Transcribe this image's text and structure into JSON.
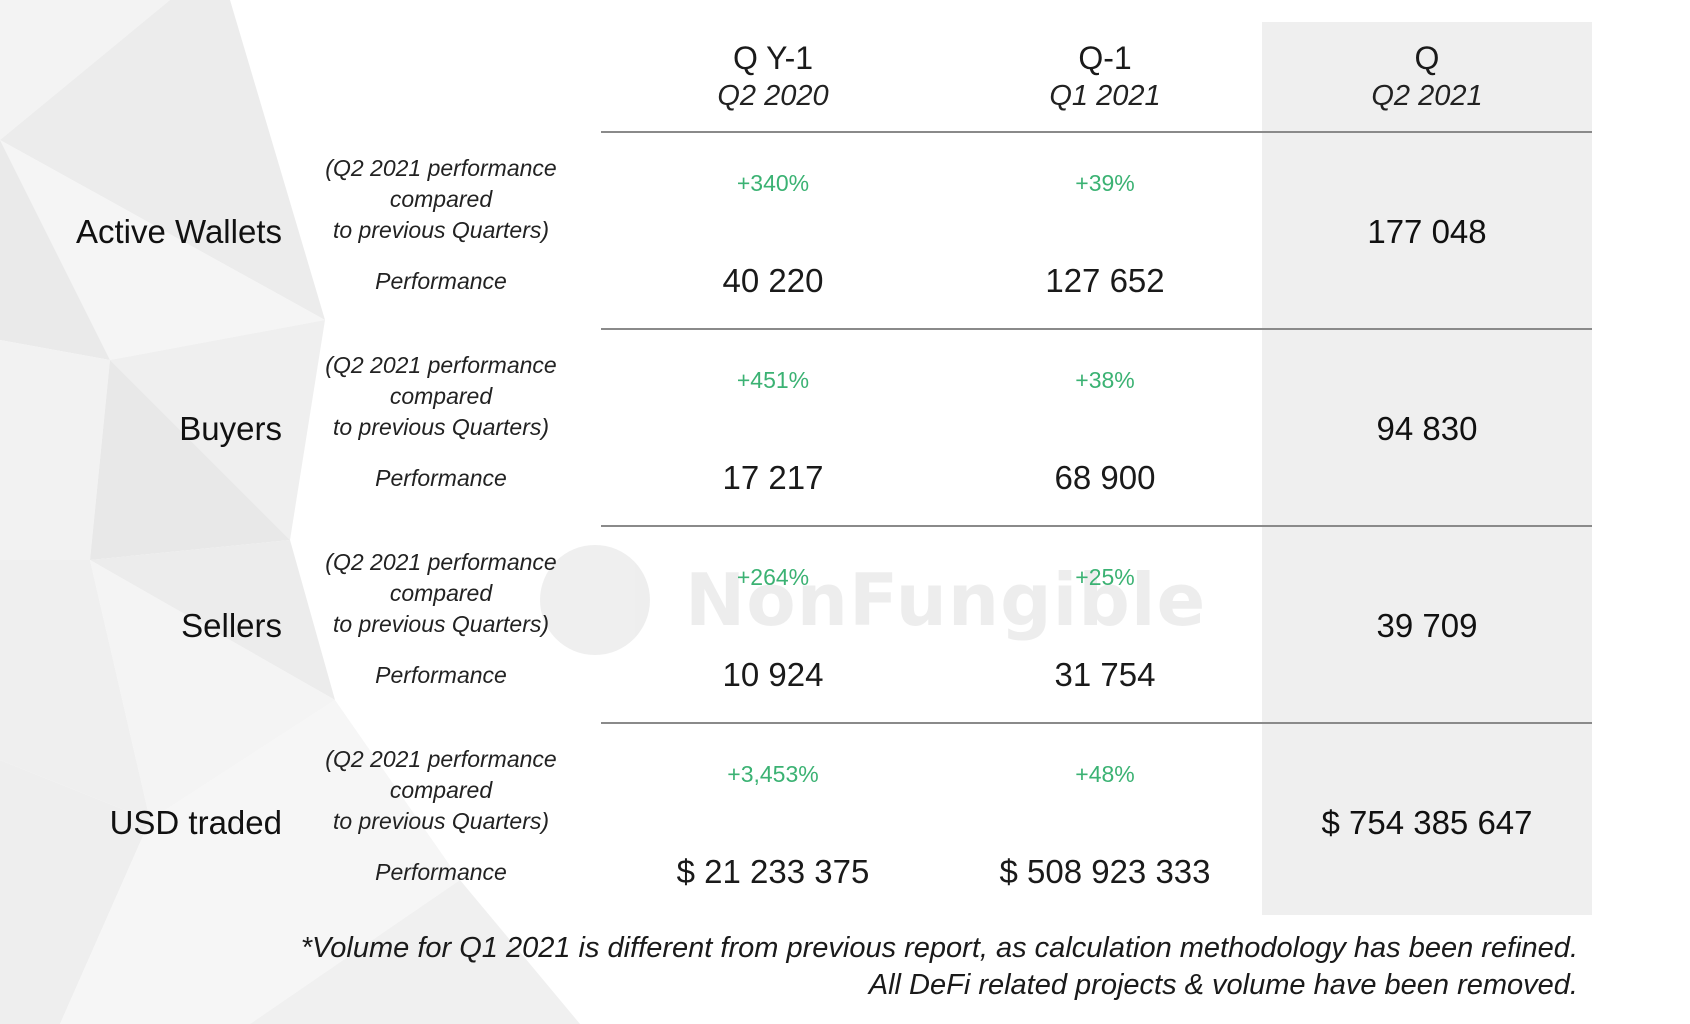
{
  "columns": [
    {
      "title": "Q Y-1",
      "period": "Q2 2020"
    },
    {
      "title": "Q-1",
      "period": "Q1 2021"
    },
    {
      "title": "Q",
      "period": "Q2 2021"
    }
  ],
  "compare_note": [
    "(Q2 2021 performance compared",
    "to previous Quarters)"
  ],
  "performance_label": "Performance",
  "metrics": [
    {
      "name": "Active Wallets",
      "pct_qy1": "+340%",
      "pct_q1": "+39%",
      "val_qy1": "40 220",
      "val_q1": "127 652",
      "val_q": "177 048"
    },
    {
      "name": "Buyers",
      "pct_qy1": "+451%",
      "pct_q1": "+38%",
      "val_qy1": "17 217",
      "val_q1": "68 900",
      "val_q": "94 830"
    },
    {
      "name": "Sellers",
      "pct_qy1": "+264%",
      "pct_q1": "+25%",
      "val_qy1": "10 924",
      "val_q1": "31 754",
      "val_q": "39 709"
    },
    {
      "name": "USD traded",
      "pct_qy1": "+3,453%",
      "pct_q1": "+48%",
      "val_qy1": "$ 21 233 375",
      "val_q1": "$ 508 923 333",
      "val_q": "$ 754 385 647"
    }
  ],
  "footnote": [
    "*Volume for Q1 2021 is different from previous report, as calculation methodology has been refined.",
    "All DeFi related projects & volume have been removed."
  ],
  "watermark": "NonFungible",
  "colors": {
    "positive": "#3bb273",
    "current_column_bg": "#efefef",
    "divider": "#8a8a8a"
  }
}
